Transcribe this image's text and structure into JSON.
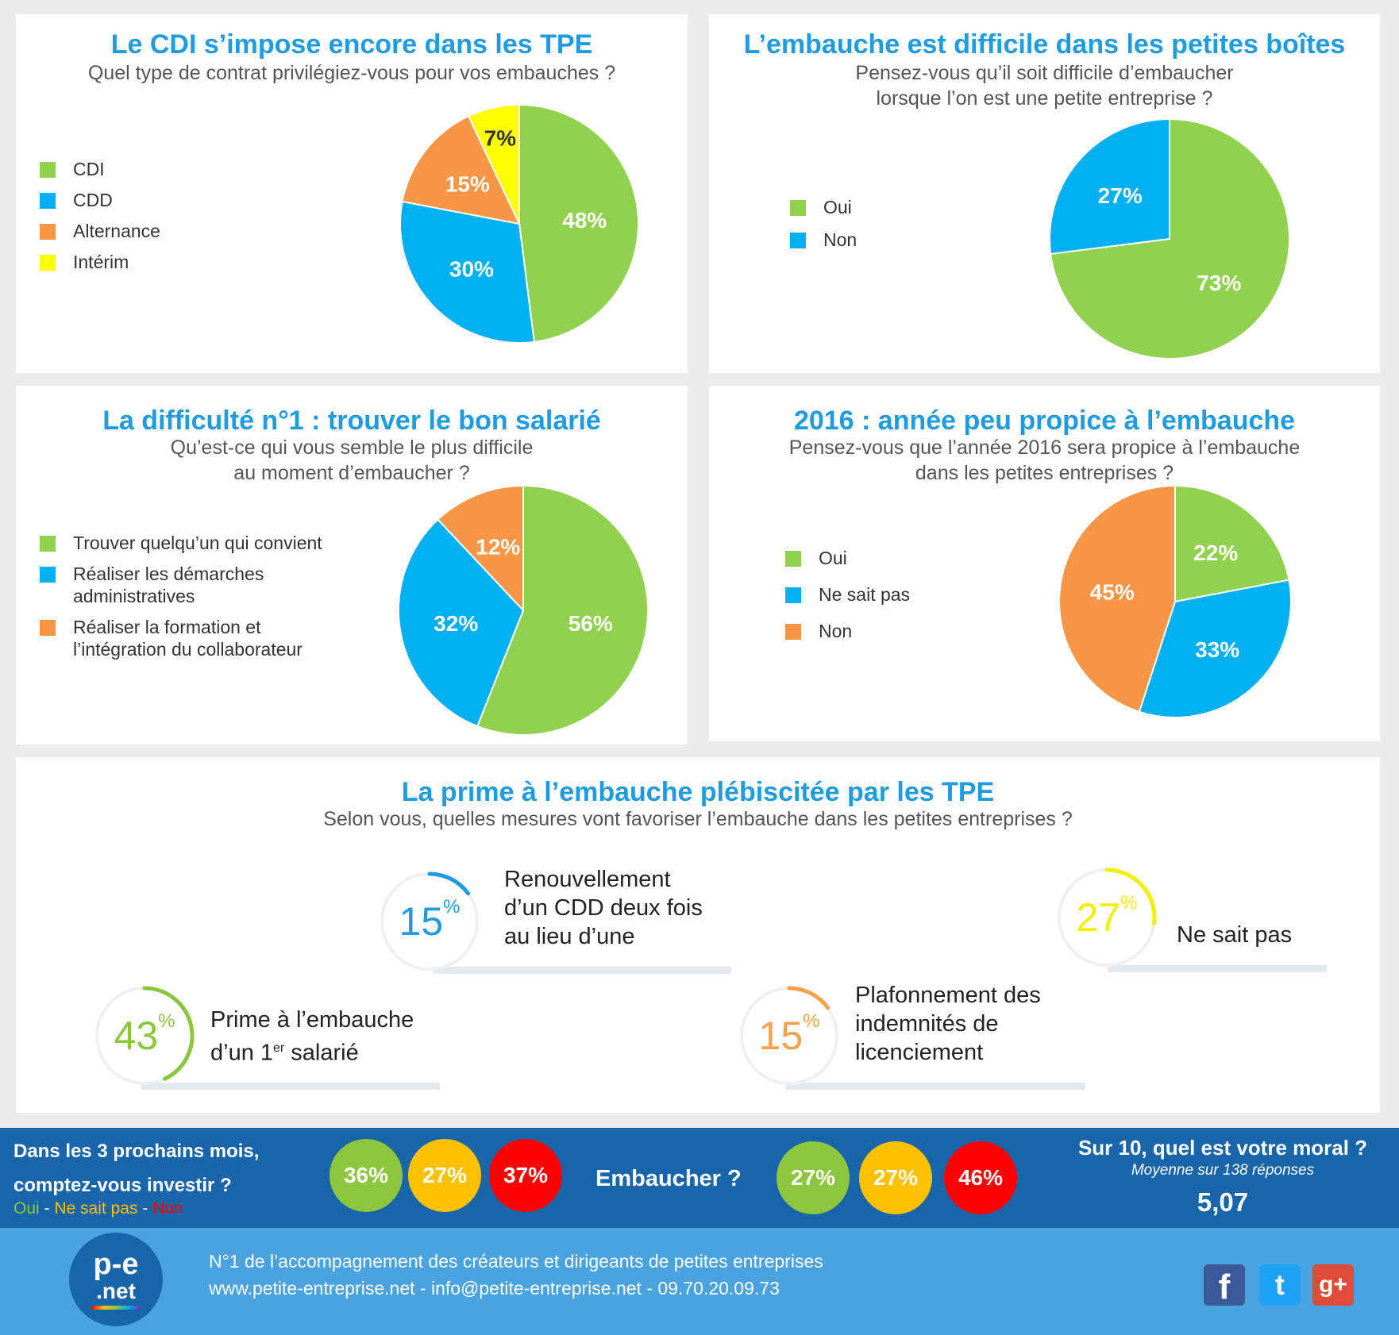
{
  "charts": {
    "contrat": {
      "title": "Le CDI s’impose encore dans les TPE",
      "subtitle_lines": [
        "Quel type de contrat privilégiez-vous pour vos embauches ?"
      ],
      "chart_data": {
        "type": "pie",
        "labels": [
          "CDI",
          "CDD",
          "Alternance",
          "Intérim"
        ],
        "values": [
          48,
          30,
          15,
          7
        ],
        "value_labels": [
          "48%",
          "30%",
          "15%",
          "7%"
        ],
        "colors": [
          "#92d050",
          "#00b0f0",
          "#f79646",
          "#ffff00"
        ],
        "label_colors": [
          "#ffffff",
          "#ffffff",
          "#ffffff",
          "#333333"
        ],
        "legend_position": "left"
      }
    },
    "difficile": {
      "title": "L’embauche est difficile dans les petites boîtes",
      "subtitle_lines": [
        "Pensez-vous qu’il soit difficile d’embaucher",
        "lorsque l’on est une petite entreprise ?"
      ],
      "chart_data": {
        "type": "pie",
        "labels": [
          "Oui",
          "Non"
        ],
        "values": [
          73,
          27
        ],
        "value_labels": [
          "73%",
          "27%"
        ],
        "colors": [
          "#92d050",
          "#00b0f0"
        ],
        "label_colors": [
          "#ffffff",
          "#ffffff"
        ],
        "legend_position": "left"
      }
    },
    "difficulte": {
      "title": "La difficulté n°1 : trouver le bon salarié",
      "subtitle_lines": [
        "Qu’est-ce qui vous semble le plus difficile",
        "au moment d’embaucher ?"
      ],
      "chart_data": {
        "type": "pie",
        "labels": [
          "Trouver quelqu’un qui convient",
          "Réaliser les démarches administratives",
          "Réaliser la formation et l’intégration du collaborateur"
        ],
        "legend_lines": [
          [
            "Trouver quelqu’un qui convient"
          ],
          [
            "Réaliser les démarches",
            "administratives"
          ],
          [
            "Réaliser la formation et",
            "l’intégration du collaborateur"
          ]
        ],
        "values": [
          56,
          32,
          12
        ],
        "value_labels": [
          "56%",
          "32%",
          "12%"
        ],
        "colors": [
          "#92d050",
          "#00b0f0",
          "#f79646"
        ],
        "label_colors": [
          "#ffffff",
          "#ffffff",
          "#ffffff"
        ],
        "legend_position": "left"
      }
    },
    "annee": {
      "title": "2016 : année peu propice à l’embauche",
      "subtitle_lines": [
        "Pensez-vous que l’année 2016 sera propice à l’embauche",
        "dans les petites entreprises ?"
      ],
      "chart_data": {
        "type": "pie",
        "labels": [
          "Oui",
          "Ne sait pas",
          "Non"
        ],
        "values": [
          22,
          33,
          45
        ],
        "value_labels": [
          "22%",
          "33%",
          "45%"
        ],
        "colors": [
          "#92d050",
          "#00b0f0",
          "#f79646"
        ],
        "label_colors": [
          "#ffffff",
          "#ffffff",
          "#ffffff"
        ],
        "legend_position": "left"
      }
    }
  },
  "mesures": {
    "title": "La prime à l’embauche plébiscitée par les TPE",
    "subtitle": "Selon vous, quelles mesures vont favoriser l’embauche dans les petites entreprises ?",
    "chart_data": {
      "type": "radial",
      "items": [
        {
          "value": 15,
          "num": "15",
          "pct": "%",
          "color": "#1f9ce0",
          "lines": [
            "Renouvellement",
            "d’un CDD deux fois",
            "au lieu d’une"
          ]
        },
        {
          "value": 27,
          "num": "27",
          "pct": "%",
          "color": "#f0f000",
          "lines": [
            "Ne sait pas"
          ]
        },
        {
          "value": 43,
          "num": "43",
          "pct": "%",
          "color": "#8cc63f",
          "lines": [
            "Prime à l’embauche",
            "d’un 1"
          ],
          "sup": "er",
          "tail": " salarié"
        },
        {
          "value": 15,
          "num": "15",
          "pct": "%",
          "color": "#f7a24b",
          "lines": [
            "Plafonnement des",
            "indemnités de",
            "licenciement"
          ]
        }
      ]
    }
  },
  "bar": {
    "investir": {
      "line1": "Dans les 3 prochains mois,",
      "line2": "comptez-vous investir ?",
      "values": [
        "36%",
        "27%",
        "37%"
      ]
    },
    "legend": {
      "oui": "Oui",
      "sep1": " - ",
      "nsp": "Ne sait pas",
      "sep2": " - ",
      "non": "Non"
    },
    "embaucher": {
      "label": "Embaucher ?",
      "values": [
        "27%",
        "27%",
        "46%"
      ]
    },
    "moral": {
      "title": "Sur 10, quel est votre moral ?",
      "note": "Moyenne sur 138 réponses",
      "value": "5,07"
    },
    "colors": {
      "oui": "#8cc63f",
      "nsp": "#ffc000",
      "non": "#ff0000"
    }
  },
  "footer": {
    "logo_top": "p-e",
    "logo_bottom": ".net",
    "tagline": "N°1 de l’accompagnement des créateurs et dirigeants de petites entreprises",
    "contact": "www.petite-entreprise.net - info@petite-entreprise.net - 09.70.20.09.73",
    "social": {
      "facebook": "f",
      "twitter": "t",
      "google": "g+"
    }
  }
}
